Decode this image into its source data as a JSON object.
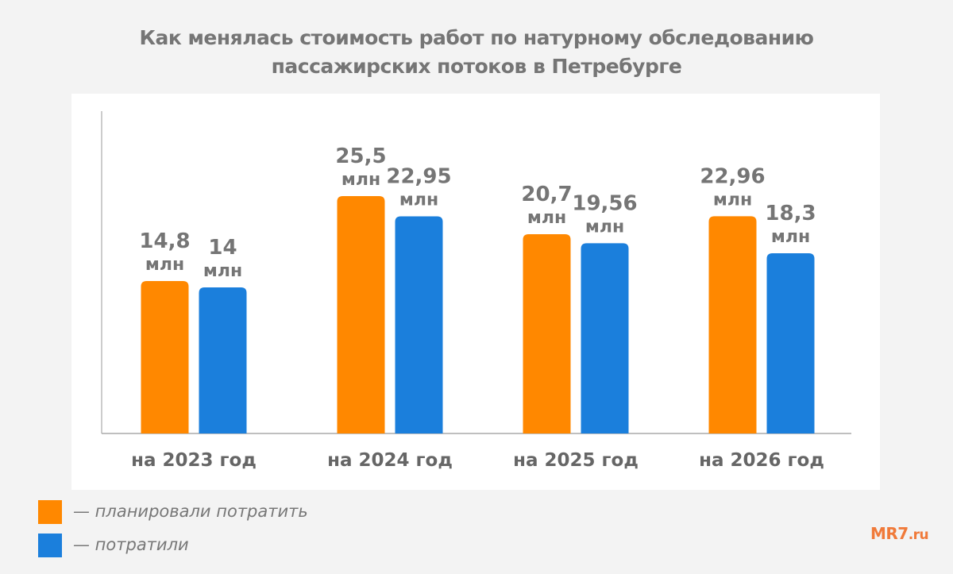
{
  "title_lines": [
    "Как менялась стоимость работ по натурному обследованию",
    "пассажирских потоков  в Петребурге"
  ],
  "colors": {
    "planned": "#ff8800",
    "spent": "#1b7fdc",
    "text": "#757575",
    "background": "#f3f3f3"
  },
  "chart_data": {
    "type": "bar",
    "title": "Как менялась стоимость работ по натурному обследованию пассажирских потоков  в Петребурге",
    "categories": [
      "на 2023 год",
      "на 2024 год",
      "на 2025 год",
      "на 2026 год"
    ],
    "unit_label": "млн",
    "series": [
      {
        "name": "— планировали потратить",
        "values": [
          14.8,
          25.5,
          20.7,
          22.96
        ],
        "labels": [
          "14,8",
          "25,5",
          "20,7",
          "22,96"
        ]
      },
      {
        "name": "— потратили",
        "values": [
          14,
          22.95,
          19.56,
          18.3
        ],
        "labels": [
          "14",
          "22,95",
          "19,56",
          "18,3"
        ]
      }
    ],
    "grid": false,
    "legend_position": "bottom-left"
  },
  "logo": {
    "main": "MR7",
    "suffix": ".ru"
  }
}
